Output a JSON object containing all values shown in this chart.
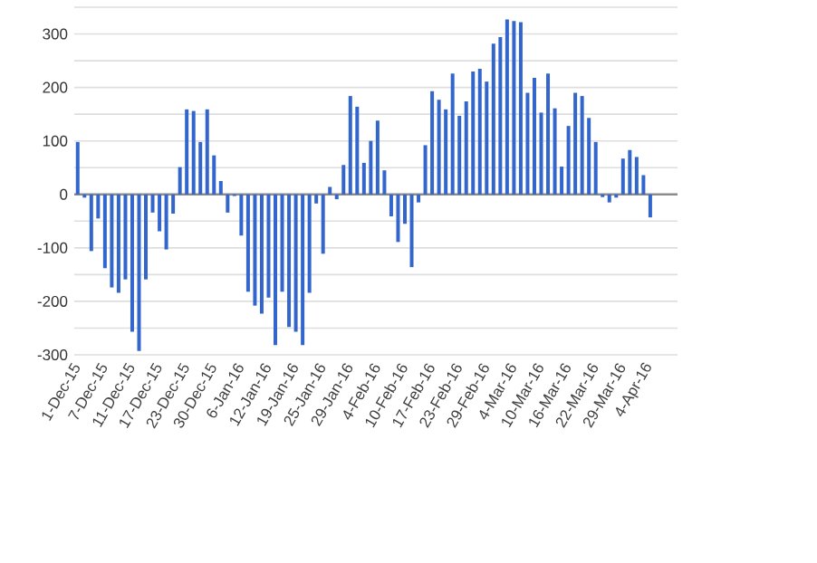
{
  "chart_data": {
    "type": "bar",
    "categories": [
      "1-Dec-15",
      null,
      null,
      null,
      "7-Dec-15",
      null,
      null,
      null,
      "11-Dec-15",
      null,
      null,
      null,
      "17-Dec-15",
      null,
      null,
      null,
      "23-Dec-15",
      null,
      null,
      null,
      "30-Dec-15",
      null,
      null,
      null,
      "6-Jan-16",
      null,
      null,
      null,
      "12-Jan-16",
      null,
      null,
      null,
      "19-Jan-16",
      null,
      null,
      null,
      "25-Jan-16",
      null,
      null,
      null,
      "29-Jan-16",
      null,
      null,
      null,
      "4-Feb-16",
      null,
      null,
      null,
      "10-Feb-16",
      null,
      null,
      null,
      "17-Feb-16",
      null,
      null,
      null,
      "23-Feb-16",
      null,
      null,
      null,
      "29-Feb-16",
      null,
      null,
      null,
      "4-Mar-16",
      null,
      null,
      null,
      "10-Mar-16",
      null,
      null,
      null,
      "16-Mar-16",
      null,
      null,
      null,
      "22-Mar-16",
      null,
      null,
      null,
      "29-Mar-16",
      null,
      null,
      null,
      "4-Apr-16"
    ],
    "values": [
      98,
      -6,
      -106,
      -45,
      -138,
      -174,
      -184,
      -159,
      -257,
      -293,
      -159,
      -34,
      -69,
      -103,
      -36,
      51,
      159,
      156,
      98,
      159,
      73,
      25,
      -34,
      -3,
      -77,
      -182,
      -208,
      -223,
      -193,
      -282,
      -182,
      -248,
      -257,
      -282,
      -184,
      -17,
      -111,
      14,
      -9,
      55,
      184,
      164,
      59,
      100,
      138,
      45,
      -41,
      -89,
      -55,
      -136,
      -15,
      92,
      193,
      177,
      159,
      226,
      147,
      174,
      230,
      235,
      211,
      282,
      294,
      327,
      324,
      322,
      190,
      218,
      153,
      226,
      161,
      52,
      128,
      190,
      184,
      143,
      98,
      -5,
      -15,
      -6,
      67,
      83,
      70,
      36,
      -43
    ],
    "color": "#3366cc",
    "ylim": [
      -300,
      350
    ],
    "yticks": [
      -300,
      {
        "value": -250,
        "label": null
      },
      -200,
      {
        "value": -150,
        "label": null
      },
      -100,
      {
        "value": -50,
        "label": null
      },
      0,
      {
        "value": 50,
        "label": null
      },
      100,
      {
        "value": 150,
        "label": null
      },
      200,
      {
        "value": 250,
        "label": null
      },
      300,
      {
        "value": 350,
        "label": null
      }
    ],
    "grid": "y"
  }
}
